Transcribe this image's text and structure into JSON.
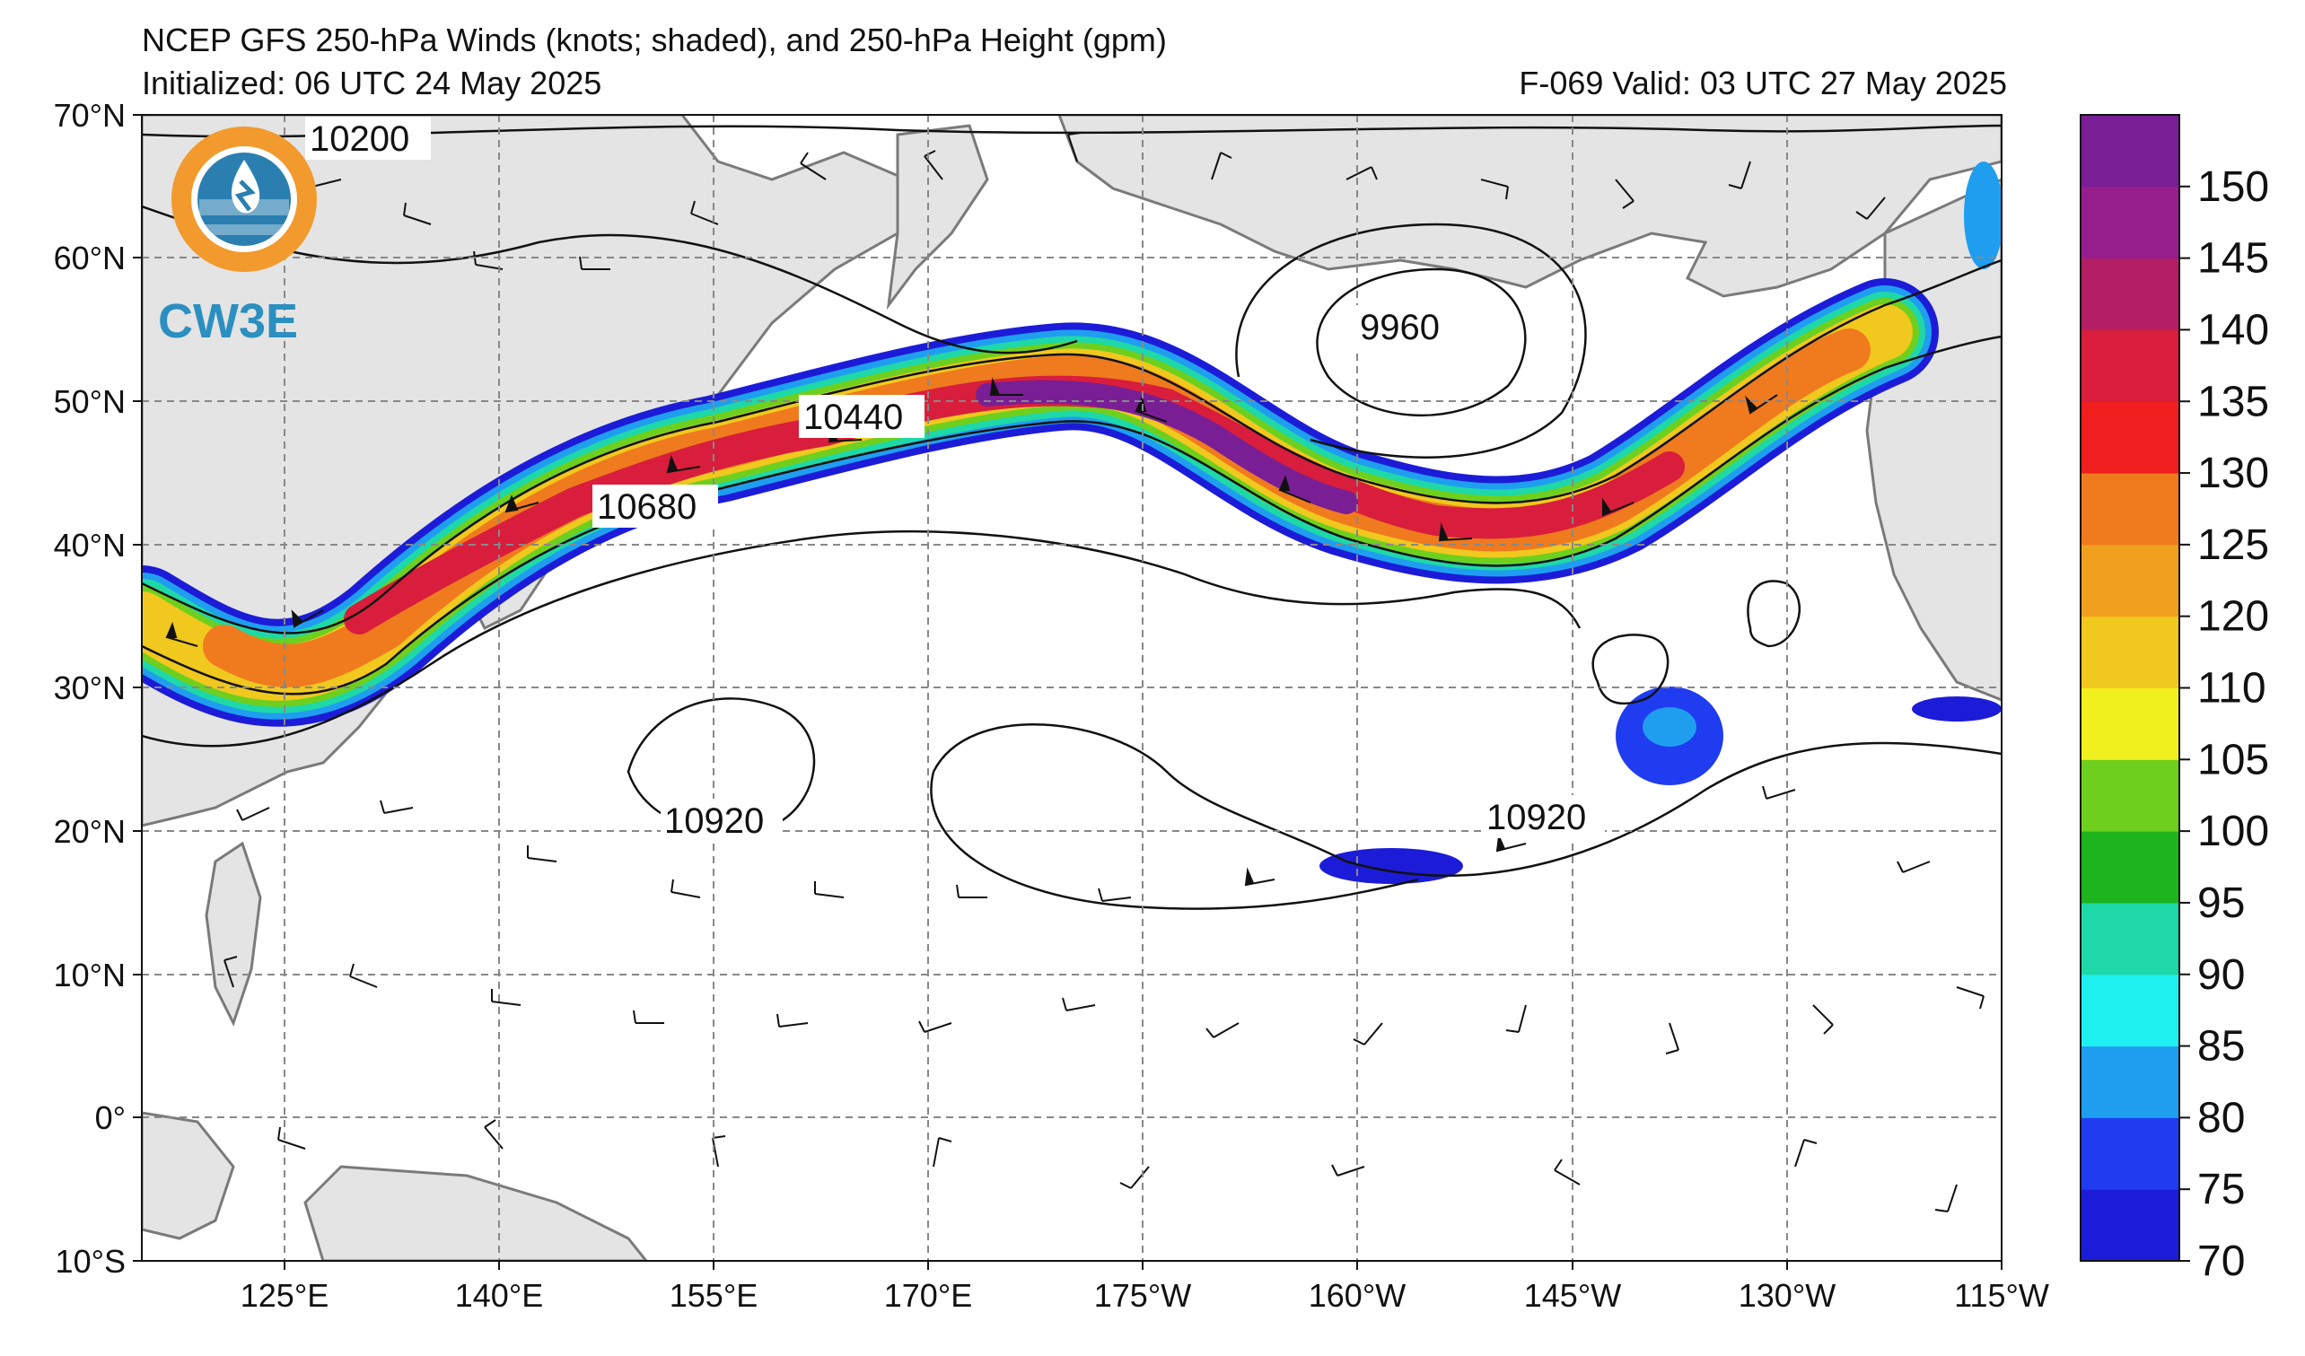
{
  "title": "NCEP GFS 250-hPa Winds (knots; shaded), and 250-hPa Height (gpm)",
  "initialized": "Initialized: 06 UTC 24 May 2025",
  "valid": "F-069  Valid: 03 UTC 27 May 2025",
  "logo": {
    "text": "CW3E",
    "icon": "cw3e-logo-icon"
  },
  "lat_labels": [
    "70°N",
    "60°N",
    "50°N",
    "40°N",
    "30°N",
    "20°N",
    "10°N",
    "0°",
    "10°S"
  ],
  "lon_labels": [
    "125°E",
    "140°E",
    "155°E",
    "170°E",
    "175°W",
    "160°W",
    "145°W",
    "130°W",
    "115°W"
  ],
  "contour_labels": [
    "10200",
    "9960",
    "10440",
    "10680",
    "10920",
    "10920"
  ],
  "colorbar": {
    "levels": [
      70,
      75,
      80,
      85,
      90,
      95,
      100,
      105,
      110,
      120,
      125,
      130,
      135,
      140,
      145,
      150
    ],
    "labels": [
      "70",
      "75",
      "80",
      "85",
      "90",
      "95",
      "100",
      "105",
      "110",
      "120",
      "125",
      "130",
      "135",
      "140",
      "145",
      "150"
    ],
    "colors": [
      "#1c1cd8",
      "#1f3cf0",
      "#1f9ef0",
      "#1ef0f0",
      "#1ed8a8",
      "#1eb41e",
      "#6ecf1e",
      "#f0f01e",
      "#f0c81e",
      "#f0a01e",
      "#f07a1e",
      "#f01e1e",
      "#d81e3c",
      "#b41e64",
      "#961e8c",
      "#7a1e96"
    ]
  },
  "colors": {
    "land": "#e4e4e4",
    "coast": "#7a7a7a",
    "grid": "#888888",
    "contour": "#111111"
  }
}
